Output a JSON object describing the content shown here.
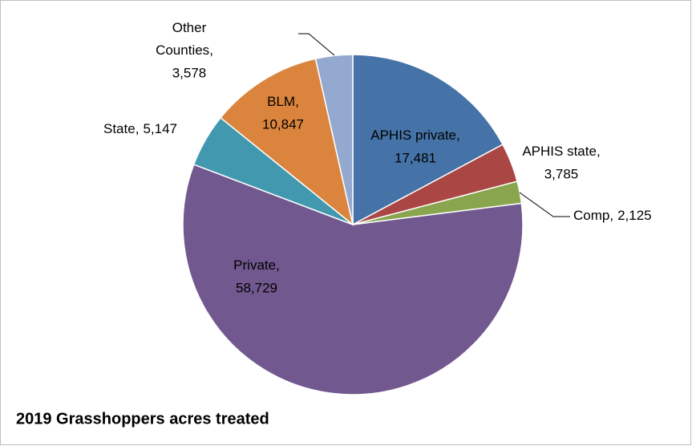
{
  "chart_data": {
    "type": "pie",
    "title": "2019 Grasshoppers acres treated",
    "categories": [
      "APHIS private",
      "APHIS state",
      "Comp",
      "Private",
      "State",
      "BLM",
      "Other Counties"
    ],
    "values": [
      17481,
      3785,
      2125,
      58729,
      5147,
      10847,
      3578
    ],
    "value_labels": [
      "17,481",
      "3,785",
      "2,125",
      "58,729",
      "5,147",
      "10,847",
      "3,578"
    ],
    "label_separator": ",",
    "colors": [
      "#4572a7",
      "#aa4643",
      "#89a54e",
      "#71588f",
      "#4198af",
      "#db843d",
      "#93a9cf"
    ]
  }
}
